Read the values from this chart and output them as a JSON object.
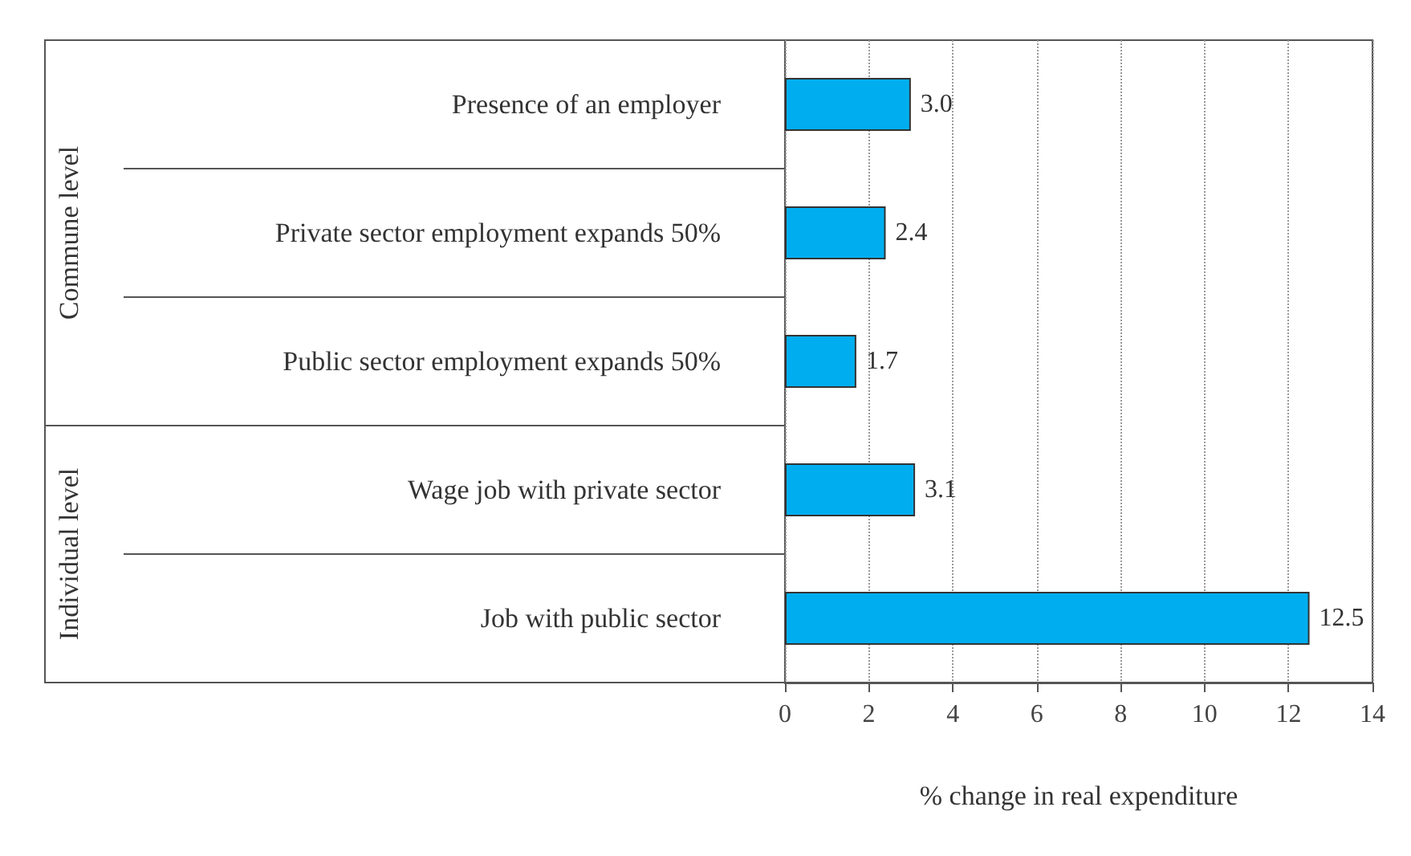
{
  "chart_data": {
    "type": "bar",
    "orientation": "horizontal",
    "categories": [
      "Presence of an employer",
      "Private sector employment expands 50%",
      "Public sector employment expands 50%",
      "Wage job with private sector",
      "Job with public sector"
    ],
    "values": [
      3.0,
      2.4,
      1.7,
      3.1,
      12.5
    ],
    "value_labels": [
      "3.0",
      "2.4",
      "1.7",
      "3.1",
      "12.5"
    ],
    "color": "#00aeef",
    "xlabel": "% change in real expenditure",
    "xlim": [
      0,
      14
    ],
    "xticks": [
      0,
      2,
      4,
      6,
      8,
      10,
      12,
      14
    ],
    "grid": "x",
    "annotations": [
      "Commune level",
      "Individual level"
    ]
  }
}
